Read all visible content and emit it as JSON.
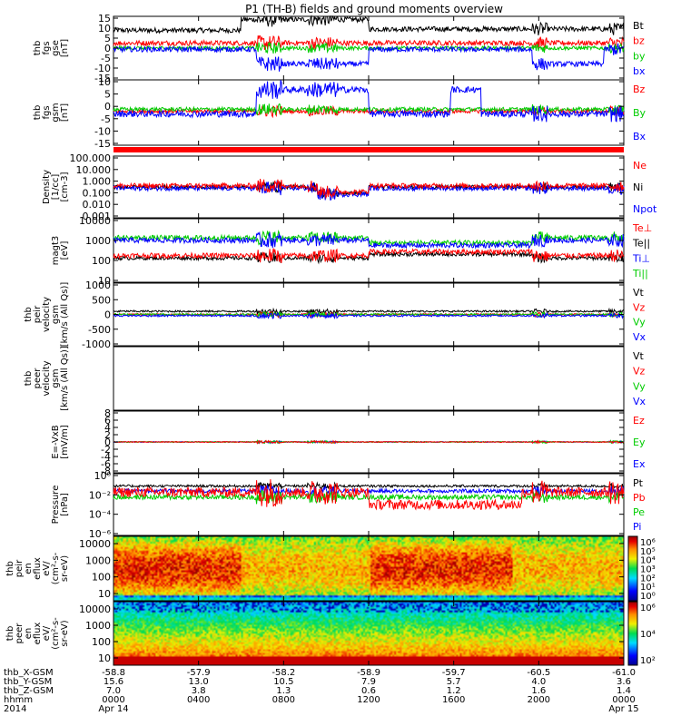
{
  "title": "P1 (TH-B) fields and ground moments overview",
  "colors": {
    "black": "#000000",
    "red": "#ff0000",
    "green": "#00cc00",
    "blue": "#0000ff",
    "axis": "#000000"
  },
  "chart_data": {
    "type": "line",
    "x_ticks": [
      "0000",
      "0400",
      "0800",
      "1200",
      "1600",
      "2000",
      "0000"
    ],
    "orbit_rows": [
      {
        "label": "thb_X-GSM",
        "values": [
          "-58.8",
          "-57.9",
          "-58.2",
          "-58.9",
          "-59.7",
          "-60.5",
          "-61.0"
        ]
      },
      {
        "label": "thb_Y-GSM",
        "values": [
          "15.6",
          "13.0",
          "10.5",
          "7.9",
          "5.7",
          "4.0",
          "3.6"
        ]
      },
      {
        "label": "thb_Z-GSM",
        "values": [
          "7.0",
          "3.8",
          "1.3",
          "0.6",
          "1.2",
          "1.6",
          "1.4"
        ]
      },
      {
        "label": "hhmm",
        "values": [
          "0000",
          "0400",
          "0800",
          "1200",
          "1600",
          "2000",
          "0000"
        ]
      },
      {
        "label": "2014",
        "values": [
          "Apr 14",
          "",
          "",
          "",
          "",
          "",
          "Apr 15"
        ]
      }
    ],
    "panels": [
      {
        "id": "fgs-gse",
        "ylabel": [
          "thb",
          "fgs",
          "gse",
          "[nT]"
        ],
        "ylim": [
          -15,
          15
        ],
        "yticks": [
          "15",
          "10",
          "5",
          "0",
          "-5",
          "-10",
          "-15"
        ],
        "series": [
          {
            "name": "Bt",
            "color": "black"
          },
          {
            "name": "bz",
            "color": "red"
          },
          {
            "name": "by",
            "color": "green"
          },
          {
            "name": "bx",
            "color": "blue"
          }
        ]
      },
      {
        "id": "fgs-gsm",
        "ylabel": [
          "thb",
          "fgs",
          "gsm",
          "[nT]"
        ],
        "ylim": [
          -15,
          15
        ],
        "yticks": [
          "10",
          "5",
          "0",
          "-5",
          "-10",
          "-15"
        ],
        "series": [
          {
            "name": "Bz",
            "color": "red"
          },
          {
            "name": "By",
            "color": "green"
          },
          {
            "name": "Bx",
            "color": "blue"
          }
        ]
      },
      {
        "id": "density",
        "ylabel": [
          "Density",
          "[1/cc]",
          "[cm-3]"
        ],
        "scale": "log",
        "yticks": [
          "100.000",
          "10.000",
          "1.000",
          "0.100",
          "0.010",
          "0.001"
        ],
        "series": [
          {
            "name": "Ne",
            "color": "red"
          },
          {
            "name": "Ni",
            "color": "black"
          },
          {
            "name": "Npot",
            "color": "blue"
          }
        ]
      },
      {
        "id": "temperature",
        "ylabel": [
          "magt3",
          "[eV]"
        ],
        "scale": "log",
        "yticks": [
          "10000",
          "1000",
          "100",
          "10"
        ],
        "series": [
          {
            "name": "Te⊥",
            "color": "red"
          },
          {
            "name": "Te||",
            "color": "black"
          },
          {
            "name": "Ti⊥",
            "color": "blue"
          },
          {
            "name": "Ti||",
            "color": "green"
          }
        ]
      },
      {
        "id": "peir-velocity",
        "ylabel": [
          "thb",
          "peir",
          "velocity",
          "gsm",
          "[km/s (All Qs)]"
        ],
        "ylim": [
          -1000,
          1000
        ],
        "yticks": [
          "1000",
          "500",
          "0",
          "-500",
          "-1000"
        ],
        "series": [
          {
            "name": "Vt",
            "color": "black"
          },
          {
            "name": "Vz",
            "color": "red"
          },
          {
            "name": "Vy",
            "color": "green"
          },
          {
            "name": "Vx",
            "color": "blue"
          }
        ]
      },
      {
        "id": "peer-velocity",
        "ylabel": [
          "thb",
          "peer",
          "velocity",
          "gsm",
          "[km/s (All Qs)]"
        ],
        "yticks": [],
        "series": [
          {
            "name": "Vt",
            "color": "black"
          },
          {
            "name": "Vz",
            "color": "red"
          },
          {
            "name": "Vy",
            "color": "green"
          },
          {
            "name": "Vx",
            "color": "blue"
          }
        ]
      },
      {
        "id": "efield",
        "ylabel": [
          "E=-VxB",
          "[mV/m]"
        ],
        "ylim": [
          -8,
          8
        ],
        "yticks": [
          "8",
          "6",
          "4",
          "2",
          "0",
          "-2",
          "-4",
          "-6",
          "-8"
        ],
        "series": [
          {
            "name": "Ez",
            "color": "red"
          },
          {
            "name": "Ey",
            "color": "green"
          },
          {
            "name": "Ex",
            "color": "blue"
          }
        ]
      },
      {
        "id": "pressure",
        "ylabel": [
          "Pressure",
          "[nPa]"
        ],
        "scale": "log",
        "yticks": [
          "10⁰",
          "10⁻²",
          "10⁻⁴",
          "10⁻⁶"
        ],
        "series": [
          {
            "name": "Pt",
            "color": "black"
          },
          {
            "name": "Pb",
            "color": "red"
          },
          {
            "name": "Pe",
            "color": "green"
          },
          {
            "name": "Pi",
            "color": "blue"
          }
        ]
      },
      {
        "id": "peir-spec",
        "type": "heatmap",
        "ylabel": [
          "thb",
          "peir",
          "en",
          "eflux",
          "eV/",
          "(cm²-s-",
          "sr-eV)"
        ],
        "yticks": [
          "10000",
          "1000",
          "100",
          "10"
        ],
        "colorbar": [
          "10⁶",
          "10⁵",
          "10⁴",
          "10³",
          "10²",
          "10¹",
          "10⁰"
        ]
      },
      {
        "id": "peer-spec",
        "type": "heatmap",
        "ylabel": [
          "thb",
          "peer",
          "en",
          "eflux",
          "eV/",
          "(cm²-s-",
          "sr-eV)"
        ],
        "yticks": [
          "10000",
          "1000",
          "100",
          "10"
        ],
        "colorbar": [
          "10⁶",
          "10⁴",
          "10²"
        ]
      }
    ]
  }
}
